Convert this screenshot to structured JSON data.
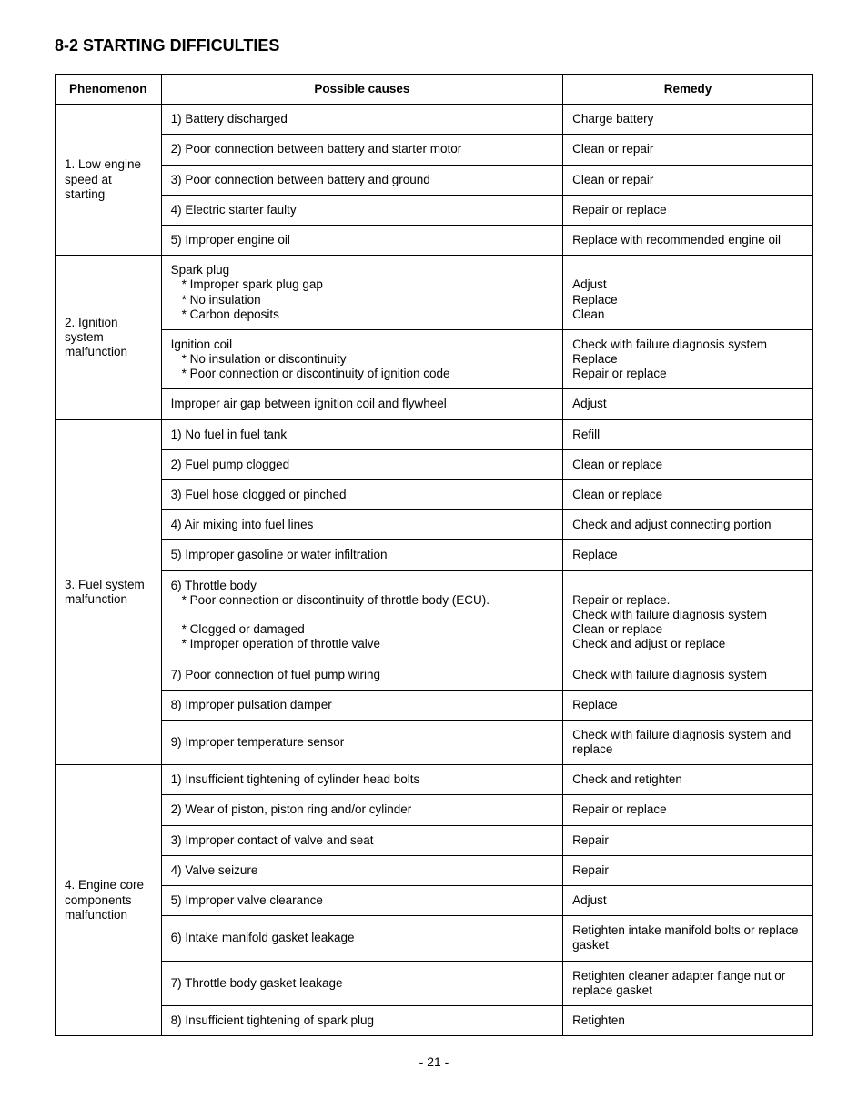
{
  "title": "8-2 STARTING DIFFICULTIES",
  "headers": {
    "phenomenon": "Phenomenon",
    "causes": "Possible causes",
    "remedy": "Remedy"
  },
  "pageNum": "- 21 -",
  "s1": {
    "phenomenon": "1. Low engine speed at starting",
    "r1": {
      "cause": "1) Battery discharged",
      "remedy": "Charge battery"
    },
    "r2": {
      "cause": "2) Poor connection between battery and starter motor",
      "remedy": "Clean or repair"
    },
    "r3": {
      "cause": "3) Poor connection between battery and ground",
      "remedy": "Clean or repair"
    },
    "r4": {
      "cause": "4) Electric starter faulty",
      "remedy": "Repair or replace"
    },
    "r5": {
      "cause": "5) Improper engine oil",
      "remedy": "Replace with recommended engine oil"
    }
  },
  "s2": {
    "phenomenon": "2. Ignition system malfunction",
    "r1": {
      "cause_main": "Spark plug",
      "cause_a": "* Improper spark plug gap",
      "cause_b": "* No insulation",
      "cause_c": "* Carbon deposits",
      "remedy_a": "Adjust",
      "remedy_b": "Replace",
      "remedy_c": "Clean"
    },
    "r2": {
      "cause_main": "Ignition coil",
      "cause_a": "* No insulation or discontinuity",
      "cause_b": "* Poor connection or discontinuity of ignition code",
      "remedy_a": "Check with failure diagnosis system",
      "remedy_b": "Replace",
      "remedy_c": "Repair or replace"
    },
    "r3": {
      "cause": "Improper air gap between ignition coil and flywheel",
      "remedy": "Adjust"
    }
  },
  "s3": {
    "phenomenon": "3. Fuel system malfunction",
    "r1": {
      "cause": "1) No fuel in fuel tank",
      "remedy": "Refill"
    },
    "r2": {
      "cause": "2) Fuel pump clogged",
      "remedy": "Clean or replace"
    },
    "r3": {
      "cause": "3) Fuel hose clogged or pinched",
      "remedy": "Clean or replace"
    },
    "r4": {
      "cause": "4) Air mixing into fuel lines",
      "remedy": "Check and adjust connecting portion"
    },
    "r5": {
      "cause": "5) Improper gasoline or water infiltration",
      "remedy": "Replace"
    },
    "r6": {
      "cause_main": "6) Throttle body",
      "cause_a": "* Poor connection or discontinuity of throttle body (ECU).",
      "cause_b": "* Clogged or damaged",
      "cause_c": "* Improper operation of throttle valve",
      "remedy_a": "Repair or replace.",
      "remedy_b": "Check with failure diagnosis system",
      "remedy_c": "Clean or replace",
      "remedy_d": "Check and adjust or replace"
    },
    "r7": {
      "cause": "7) Poor connection of fuel pump wiring",
      "remedy": "Check with failure diagnosis system"
    },
    "r8": {
      "cause": "8) Improper pulsation damper",
      "remedy": "Replace"
    },
    "r9": {
      "cause": "9) Improper temperature sensor",
      "remedy": "Check with failure diagnosis system and replace"
    }
  },
  "s4": {
    "phenomenon": "4. Engine core components malfunction",
    "r1": {
      "cause": "1) Insufficient tightening of cylinder head bolts",
      "remedy": "Check and retighten"
    },
    "r2": {
      "cause": "2) Wear of piston, piston ring and/or cylinder",
      "remedy": "Repair or replace"
    },
    "r3": {
      "cause": "3) Improper contact of valve and seat",
      "remedy": "Repair"
    },
    "r4": {
      "cause": "4) Valve seizure",
      "remedy": "Repair"
    },
    "r5": {
      "cause": "5) Improper valve clearance",
      "remedy": "Adjust"
    },
    "r6": {
      "cause": "6) Intake manifold gasket leakage",
      "remedy": "Retighten intake manifold bolts or replace gasket"
    },
    "r7": {
      "cause": "7) Throttle body gasket leakage",
      "remedy": "Retighten cleaner adapter flange nut or replace gasket"
    },
    "r8": {
      "cause": "8) Insufficient tightening of spark plug",
      "remedy": "Retighten"
    }
  }
}
